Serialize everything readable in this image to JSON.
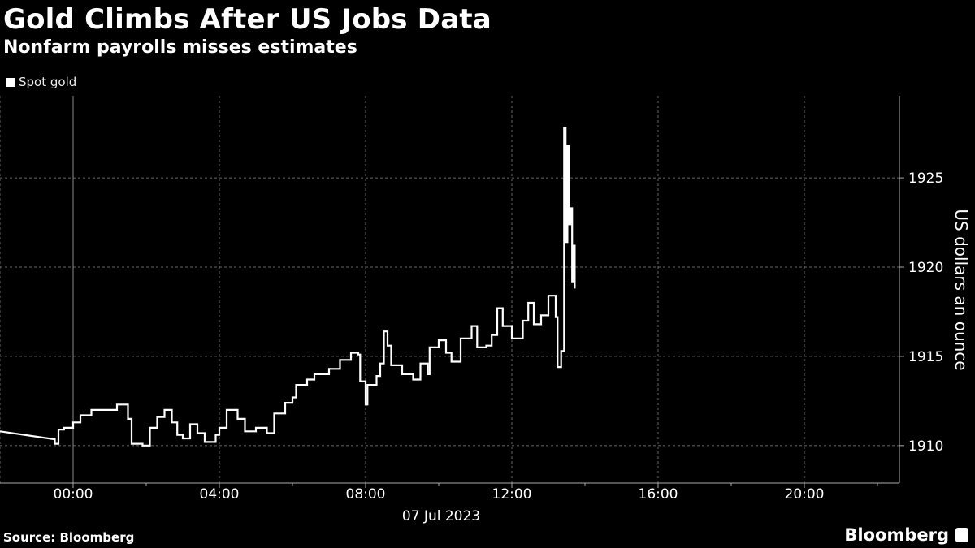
{
  "chart_data": {
    "type": "line",
    "title": "Gold Climbs After US Jobs Data",
    "subtitle": "Nonfarm payrolls misses estimates",
    "legend": [
      "Spot gold"
    ],
    "legend_placement": "top-left",
    "ylabel": "US dollars an ounce",
    "xlabel": "07 Jul 2023",
    "x_unit": "hours since 00:00 07 Jul 2023",
    "xlim": [
      -2.0,
      22.6
    ],
    "ylim": [
      1907.9,
      1929.6
    ],
    "y_ticks": [
      1910,
      1915,
      1920,
      1925
    ],
    "y_tick_labels": [
      "1910",
      "1915",
      "1920",
      "1925"
    ],
    "x_ticks": [
      0,
      4,
      8,
      12,
      16,
      20
    ],
    "x_tick_labels": [
      "00:00",
      "04:00",
      "08:00",
      "12:00",
      "16:00",
      "20:00"
    ],
    "grid": true,
    "series": [
      {
        "name": "Spot gold",
        "x": [
          -2.0,
          -0.5,
          -0.5,
          -0.4,
          -0.25,
          0,
          0.2,
          0.5,
          1.0,
          1.2,
          1.5,
          1.6,
          1.9,
          2.1,
          2.3,
          2.5,
          2.7,
          2.85,
          3.0,
          3.2,
          3.4,
          3.6,
          3.9,
          4.0,
          4.2,
          4.5,
          4.7,
          5.0,
          5.3,
          5.5,
          5.8,
          6.0,
          6.1,
          6.4,
          6.6,
          7.0,
          7.3,
          7.6,
          7.8,
          7.85,
          8.0,
          8.05,
          8.3,
          8.4,
          8.5,
          8.6,
          8.7,
          9.0,
          9.3,
          9.5,
          9.7,
          9.75,
          10.0,
          10.2,
          10.35,
          10.6,
          10.9,
          11.05,
          11.3,
          11.45,
          11.6,
          11.75,
          12.0,
          12.3,
          12.45,
          12.6,
          12.8,
          13.0,
          13.2,
          13.25,
          13.35,
          13.43,
          13.47,
          13.52,
          13.56,
          13.61,
          13.65,
          13.68,
          13.72
        ],
        "values": [
          1910.8,
          1910.35,
          1910.1,
          1910.9,
          1911.0,
          1911.3,
          1911.7,
          1912.0,
          1912.0,
          1912.3,
          1911.5,
          1910.1,
          1910.0,
          1911.0,
          1911.6,
          1912.0,
          1911.3,
          1910.6,
          1910.4,
          1911.2,
          1910.7,
          1910.2,
          1910.6,
          1911.0,
          1912.0,
          1911.5,
          1910.8,
          1911.0,
          1910.7,
          1911.8,
          1912.4,
          1912.7,
          1913.4,
          1913.7,
          1914.0,
          1914.3,
          1914.8,
          1915.2,
          1915.1,
          1913.6,
          1912.3,
          1913.4,
          1913.9,
          1914.6,
          1916.4,
          1915.6,
          1914.5,
          1914.0,
          1913.7,
          1914.6,
          1914.0,
          1915.5,
          1915.9,
          1915.2,
          1914.7,
          1916.0,
          1916.7,
          1915.5,
          1915.6,
          1916.2,
          1917.7,
          1916.7,
          1916.0,
          1917.0,
          1918.0,
          1916.8,
          1917.3,
          1918.4,
          1917.2,
          1914.4,
          1915.3,
          1927.8,
          1921.4,
          1926.8,
          1922.4,
          1923.3,
          1919.2,
          1921.2,
          1918.8
        ]
      }
    ]
  },
  "footer": {
    "source": "Source: Bloomberg",
    "brand": "Bloomberg"
  },
  "colors": {
    "background": "#000000",
    "line": "#ffffff",
    "grid": "#666666"
  }
}
